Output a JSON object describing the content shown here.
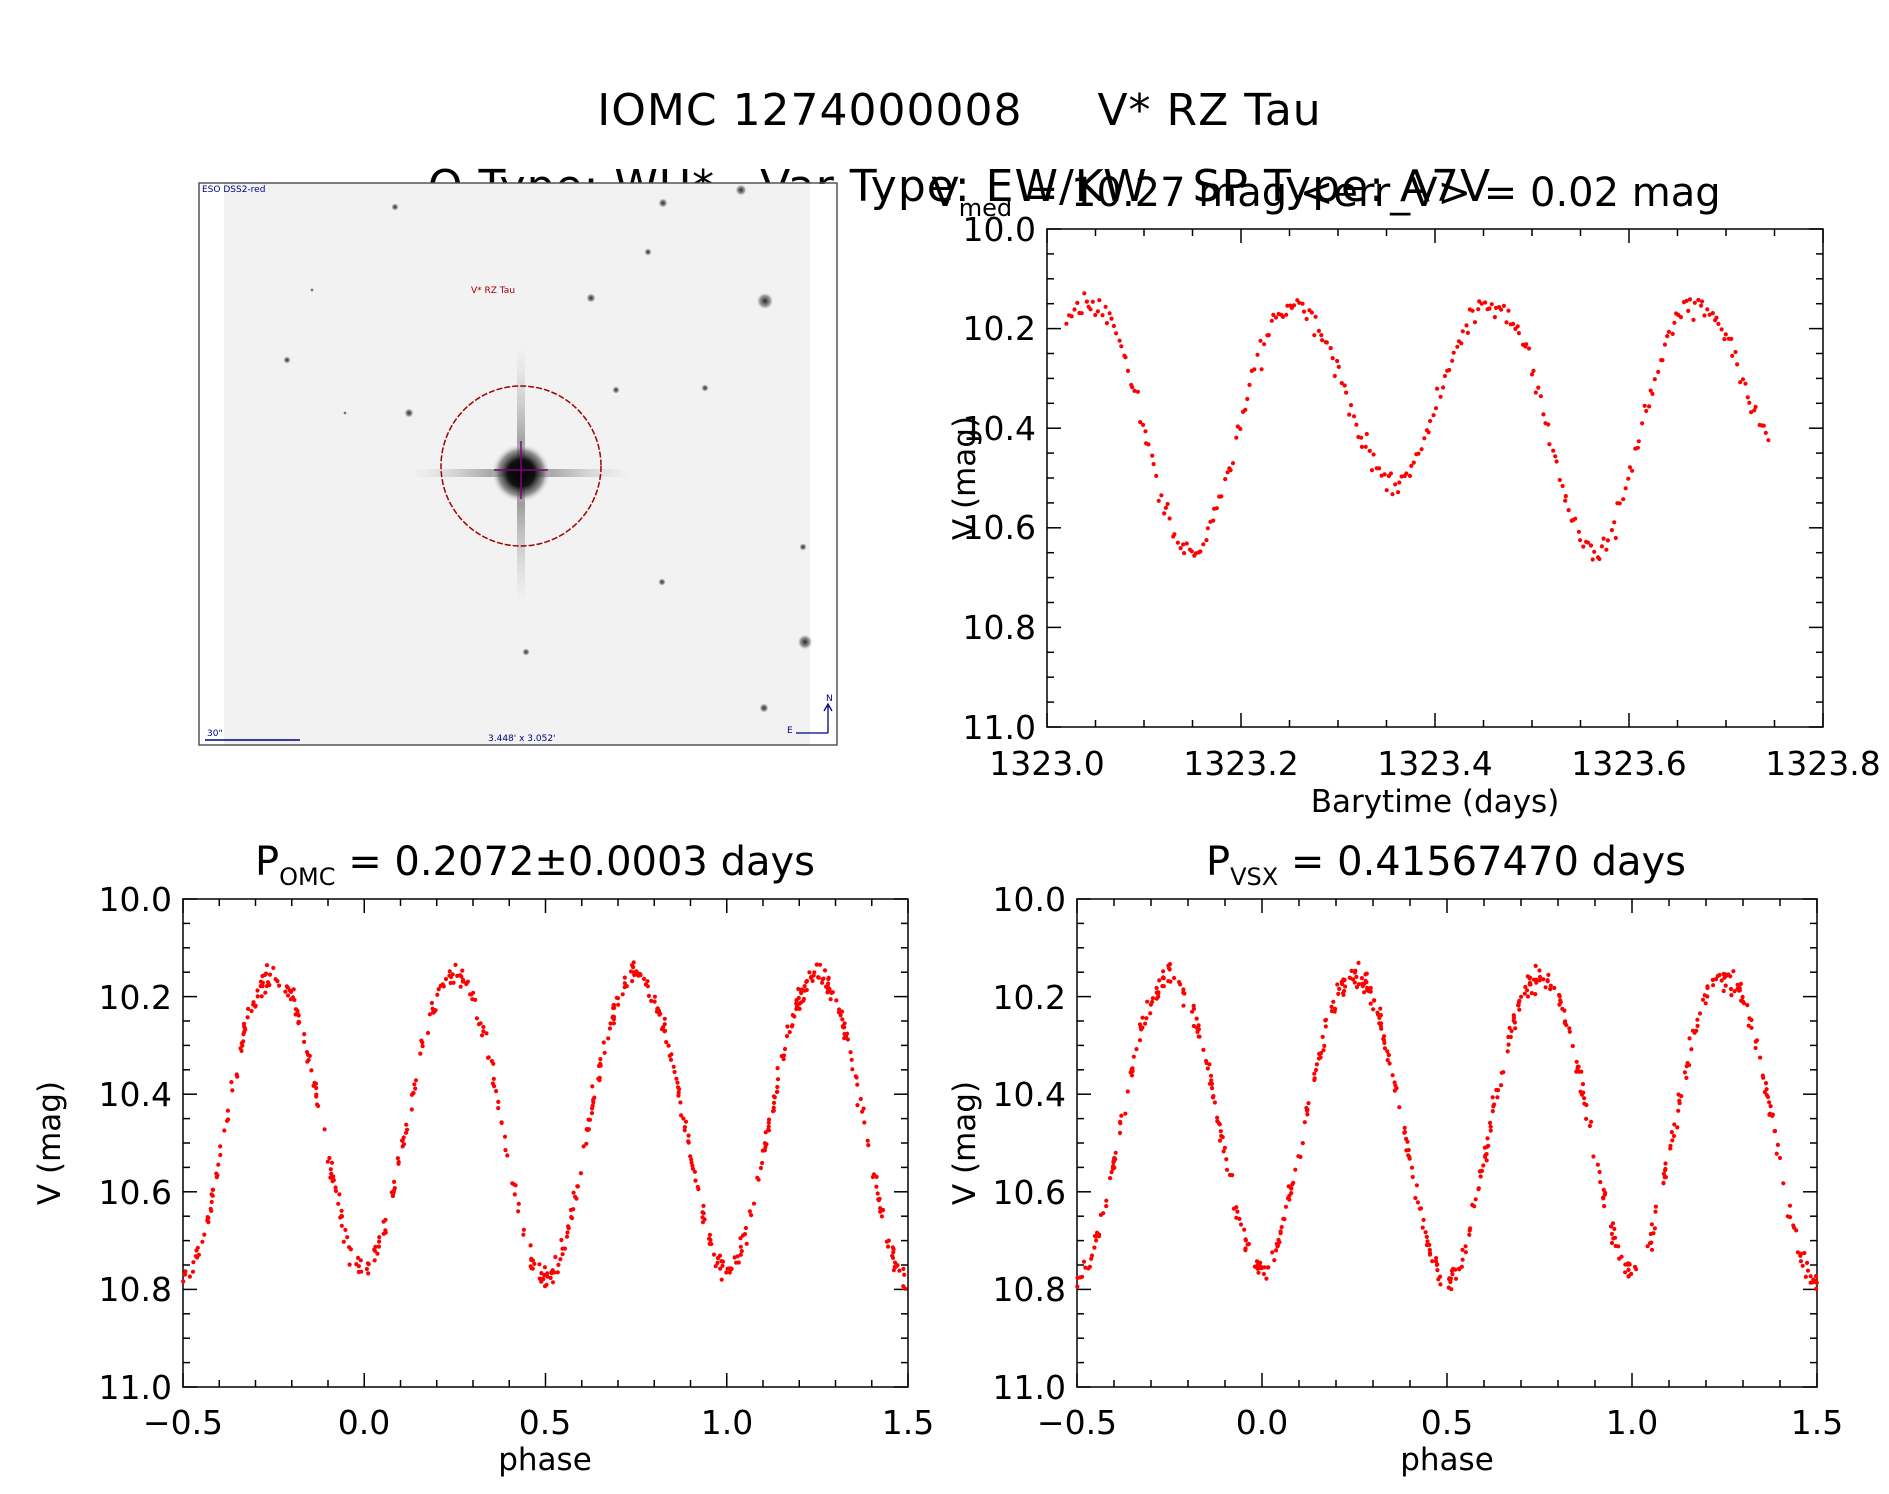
{
  "header": {
    "line1_left": "IOMC 1274000008",
    "line1_right": "V* RZ Tau",
    "line2": [
      "O Type: WU*",
      "Var Type: EW/KW",
      "SP Type: A7V"
    ]
  },
  "image_panel": {
    "survey": "ESO DSS2-red",
    "target": "V* RZ Tau",
    "scale_bar": "30\"",
    "size": "3.448' x 3.052'",
    "north": "N",
    "east": "E"
  },
  "colors": {
    "points": "#ff0000",
    "axes": "#000000",
    "circle": "#a00000",
    "image_text": "#000080"
  },
  "chart_data": [
    {
      "type": "scatter",
      "title_parts": [
        "V",
        "med",
        " = 10.27 mag <err_V> = 0.02 mag"
      ],
      "xlabel": "Barytime (days)",
      "ylabel": "V (mag)",
      "xlim": [
        1323.0,
        1323.8
      ],
      "ylim": [
        11.0,
        10.0
      ],
      "xticks": [
        "1323.0",
        "1323.2",
        "1323.4",
        "1323.6",
        "1323.8"
      ],
      "yticks": [
        "10.0",
        "10.2",
        "10.4",
        "10.6",
        "10.8",
        "11.0"
      ],
      "series": [
        {
          "x_range": [
            1323.02,
            1323.745
          ],
          "model": {
            "mean": 10.42,
            "amp_primary": 0.3,
            "amp_secondary": 0.14,
            "period_days": 0.4156747,
            "t_min": 1323.149
          },
          "points": 300,
          "color": "#ff0000"
        }
      ]
    },
    {
      "type": "scatter",
      "title_parts": [
        "P",
        "OMC",
        " = 0.2072±0.0003 days"
      ],
      "xlabel": "phase",
      "ylabel": "V (mag)",
      "xlim": [
        -0.5,
        1.5
      ],
      "ylim": [
        11.0,
        10.0
      ],
      "xticks": [
        "−0.5",
        "0.0",
        "0.5",
        "1.0",
        "1.5"
      ],
      "yticks": [
        "10.0",
        "10.2",
        "10.4",
        "10.6",
        "10.8",
        "11.0"
      ],
      "series": [
        {
          "x_range": [
            -0.5,
            1.5
          ],
          "model": {
            "mean": 10.42,
            "amp_primary": 0.33,
            "amp_secondary": 0.3,
            "cycles_per_unit_phase": 2
          },
          "points": 600,
          "color": "#ff0000"
        }
      ]
    },
    {
      "type": "scatter",
      "title_parts": [
        "P",
        "VSX",
        " = 0.41567470 days"
      ],
      "xlabel": "phase",
      "ylabel": "V (mag)",
      "xlim": [
        -0.5,
        1.5
      ],
      "ylim": [
        11.0,
        10.0
      ],
      "xticks": [
        "−0.5",
        "0.0",
        "0.5",
        "1.0",
        "1.5"
      ],
      "yticks": [
        "10.0",
        "10.2",
        "10.4",
        "10.6",
        "10.8",
        "11.0"
      ],
      "series": [
        {
          "x_range": [
            -0.5,
            1.5
          ],
          "model": {
            "mean": 10.42,
            "amp_primary": 0.33,
            "amp_secondary": 0.3,
            "cycles_per_unit_phase": 2
          },
          "points": 600,
          "color": "#ff0000"
        }
      ]
    }
  ]
}
